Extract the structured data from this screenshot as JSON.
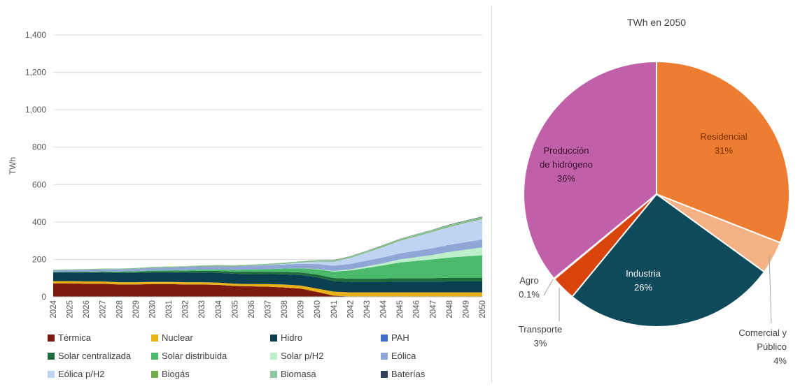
{
  "chart_data": [
    {
      "type": "area",
      "stacked": true,
      "title": "",
      "xlabel": "",
      "ylabel": "TWh",
      "ylim": [
        0,
        1400
      ],
      "yticks": [
        0,
        200,
        400,
        600,
        800,
        1000,
        1200,
        1400
      ],
      "ytick_labels": [
        "0",
        "200",
        "400",
        "600",
        "800",
        "1,000",
        "1,200",
        "1,400"
      ],
      "grid": true,
      "legend_position": "bottom",
      "x": [
        "2024",
        "2025",
        "2026",
        "2027",
        "2028",
        "2029",
        "2030",
        "2031",
        "2032",
        "2033",
        "2034",
        "2035",
        "2036",
        "2037",
        "2038",
        "2039",
        "2040",
        "2041",
        "2042",
        "2043",
        "2044",
        "2045",
        "2046",
        "2047",
        "2048",
        "2049",
        "2050"
      ],
      "series": [
        {
          "name": "Térmica",
          "color": "#7b1a0e",
          "values": [
            72,
            72,
            70,
            70,
            66,
            66,
            68,
            68,
            66,
            66,
            64,
            58,
            56,
            54,
            50,
            44,
            26,
            6,
            2,
            2,
            2,
            2,
            2,
            2,
            2,
            2,
            2
          ]
        },
        {
          "name": "Nuclear",
          "color": "#e8b216",
          "values": [
            12,
            12,
            12,
            12,
            12,
            12,
            12,
            12,
            12,
            12,
            12,
            12,
            12,
            14,
            16,
            16,
            18,
            22,
            22,
            22,
            22,
            22,
            22,
            22,
            22,
            22,
            22
          ]
        },
        {
          "name": "Hidro",
          "color": "#0a3f52",
          "values": [
            46,
            46,
            47,
            48,
            49,
            50,
            50,
            50,
            51,
            52,
            52,
            53,
            54,
            54,
            54,
            56,
            60,
            56,
            56,
            56,
            56,
            57,
            57,
            57,
            58,
            58,
            58
          ]
        },
        {
          "name": "PAH",
          "color": "#3d6fc9",
          "values": [
            0,
            0,
            0,
            0,
            0,
            0,
            0,
            0,
            0,
            0,
            0,
            0,
            0,
            0,
            0,
            0,
            0,
            0,
            0,
            0,
            0,
            0,
            0,
            0,
            0,
            0,
            0
          ]
        },
        {
          "name": "Solar centralizada",
          "color": "#1e6b3c",
          "values": [
            2,
            3,
            4,
            4,
            5,
            6,
            7,
            7,
            8,
            9,
            10,
            11,
            12,
            12,
            13,
            14,
            15,
            17,
            17,
            18,
            18,
            19,
            19,
            19,
            20,
            20,
            20
          ]
        },
        {
          "name": "Solar distribuida",
          "color": "#4cba6b",
          "values": [
            1,
            1,
            2,
            2,
            3,
            3,
            4,
            5,
            6,
            7,
            8,
            10,
            12,
            14,
            18,
            22,
            28,
            34,
            44,
            56,
            70,
            84,
            92,
            100,
            108,
            114,
            120
          ]
        },
        {
          "name": "Solar p/H2",
          "color": "#bdefcb",
          "values": [
            0,
            0,
            0,
            0,
            0,
            0,
            0,
            0,
            0,
            0,
            0,
            0,
            0,
            0,
            0,
            0,
            2,
            3,
            6,
            9,
            12,
            16,
            20,
            24,
            30,
            36,
            42
          ]
        },
        {
          "name": "Eólica",
          "color": "#8fa6d6",
          "values": [
            8,
            9,
            10,
            11,
            12,
            13,
            14,
            15,
            16,
            17,
            18,
            19,
            20,
            21,
            22,
            24,
            26,
            28,
            29,
            30,
            31,
            32,
            34,
            36,
            38,
            40,
            42
          ]
        },
        {
          "name": "Eólica p/H2",
          "color": "#bfd3f2",
          "values": [
            0,
            0,
            0,
            0,
            0,
            0,
            0,
            0,
            0,
            0,
            0,
            0,
            0,
            2,
            4,
            8,
            14,
            22,
            32,
            44,
            56,
            68,
            78,
            88,
            96,
            104,
            110
          ]
        },
        {
          "name": "Biogás",
          "color": "#70ad47",
          "values": [
            1,
            1,
            1,
            1,
            1,
            1,
            2,
            2,
            2,
            2,
            2,
            2,
            2,
            2,
            2,
            2,
            3,
            3,
            3,
            3,
            4,
            4,
            4,
            4,
            4,
            4,
            5
          ]
        },
        {
          "name": "Biomasa",
          "color": "#8cc7a1",
          "values": [
            3,
            3,
            3,
            3,
            3,
            3,
            3,
            3,
            3,
            3,
            4,
            4,
            4,
            4,
            4,
            4,
            5,
            5,
            5,
            5,
            5,
            5,
            6,
            6,
            6,
            6,
            6
          ]
        },
        {
          "name": "Baterías",
          "color": "#2f3f5c",
          "values": [
            0,
            0,
            0,
            0,
            0,
            0,
            0,
            0,
            0,
            0,
            0,
            0,
            0,
            0,
            0,
            0,
            0,
            1,
            1,
            1,
            1,
            1,
            1,
            1,
            2,
            2,
            2
          ]
        }
      ]
    },
    {
      "type": "pie",
      "title": "TWh en 2050",
      "slices": [
        {
          "label_lines": [
            "Residencial"
          ],
          "pct_label": "31%",
          "value": 31,
          "color": "#ed7d31",
          "label_color": "#7a2f00"
        },
        {
          "label_lines": [
            "Comercial y",
            "Público"
          ],
          "pct_label": "4%",
          "value": 4,
          "color": "#f4b183",
          "label_color": "#404040"
        },
        {
          "label_lines": [
            "Industria"
          ],
          "pct_label": "26%",
          "value": 26,
          "color": "#0e4a5a",
          "label_color": "#ffffff"
        },
        {
          "label_lines": [
            "Transporte"
          ],
          "pct_label": "3%",
          "value": 3,
          "color": "#d9440c",
          "label_color": "#404040"
        },
        {
          "label_lines": [
            "Agro"
          ],
          "pct_label": "0.1%",
          "value": 0.1,
          "color": "#a9d18e",
          "label_color": "#404040"
        },
        {
          "label_lines": [
            "Producción",
            "de hidrógeno"
          ],
          "pct_label": "36%",
          "value": 36,
          "color": "#c060a8",
          "label_color": "#3a1030"
        }
      ]
    }
  ]
}
